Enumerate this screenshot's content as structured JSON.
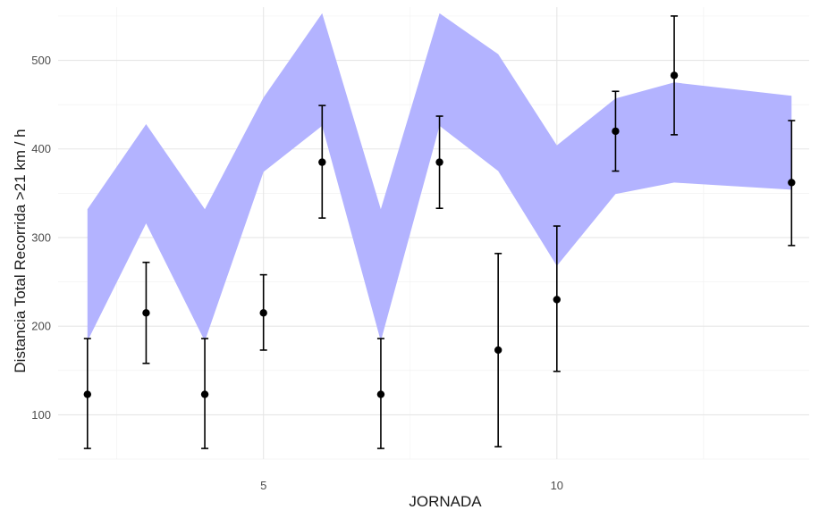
{
  "chart_data": {
    "type": "scatter",
    "title": "",
    "xlabel": "JORNADA",
    "ylabel": "Distancia Total Recorrida >21 km / h",
    "x_ticks": [
      5,
      10
    ],
    "y_ticks": [
      100,
      200,
      300,
      400,
      500
    ],
    "xlim": [
      1.5,
      14.3
    ],
    "ylim": [
      50,
      560
    ],
    "grid": true,
    "colors": {
      "band": "#b3b3ff",
      "points": "#000000",
      "errorbars": "#000000"
    },
    "points": [
      {
        "x": 2,
        "y": 123,
        "ymin": 62,
        "ymax": 186
      },
      {
        "x": 3,
        "y": 215,
        "ymin": 158,
        "ymax": 272
      },
      {
        "x": 4,
        "y": 123,
        "ymin": 62,
        "ymax": 186
      },
      {
        "x": 5,
        "y": 215,
        "ymin": 173,
        "ymax": 258
      },
      {
        "x": 6,
        "y": 385,
        "ymin": 322,
        "ymax": 449
      },
      {
        "x": 7,
        "y": 123,
        "ymin": 62,
        "ymax": 186
      },
      {
        "x": 8,
        "y": 385,
        "ymin": 333,
        "ymax": 437
      },
      {
        "x": 9,
        "y": 173,
        "ymin": 64,
        "ymax": 282
      },
      {
        "x": 10,
        "y": 230,
        "ymin": 149,
        "ymax": 313
      },
      {
        "x": 11,
        "y": 420,
        "ymin": 375,
        "ymax": 465
      },
      {
        "x": 12,
        "y": 483,
        "ymin": 416,
        "ymax": 550
      },
      {
        "x": 14,
        "y": 362,
        "ymin": 291,
        "ymax": 432
      }
    ],
    "band": [
      {
        "x": 2,
        "lower": 183,
        "upper": 332
      },
      {
        "x": 3,
        "lower": 316,
        "upper": 428
      },
      {
        "x": 4,
        "lower": 183,
        "upper": 332
      },
      {
        "x": 5,
        "lower": 374,
        "upper": 458
      },
      {
        "x": 6,
        "lower": 426,
        "upper": 553
      },
      {
        "x": 7,
        "lower": 183,
        "upper": 332
      },
      {
        "x": 8,
        "lower": 426,
        "upper": 553
      },
      {
        "x": 9,
        "lower": 375,
        "upper": 507
      },
      {
        "x": 10,
        "lower": 268,
        "upper": 404
      },
      {
        "x": 11,
        "lower": 349,
        "upper": 457
      },
      {
        "x": 12,
        "lower": 362,
        "upper": 475
      },
      {
        "x": 14,
        "lower": 354,
        "upper": 460
      }
    ]
  }
}
